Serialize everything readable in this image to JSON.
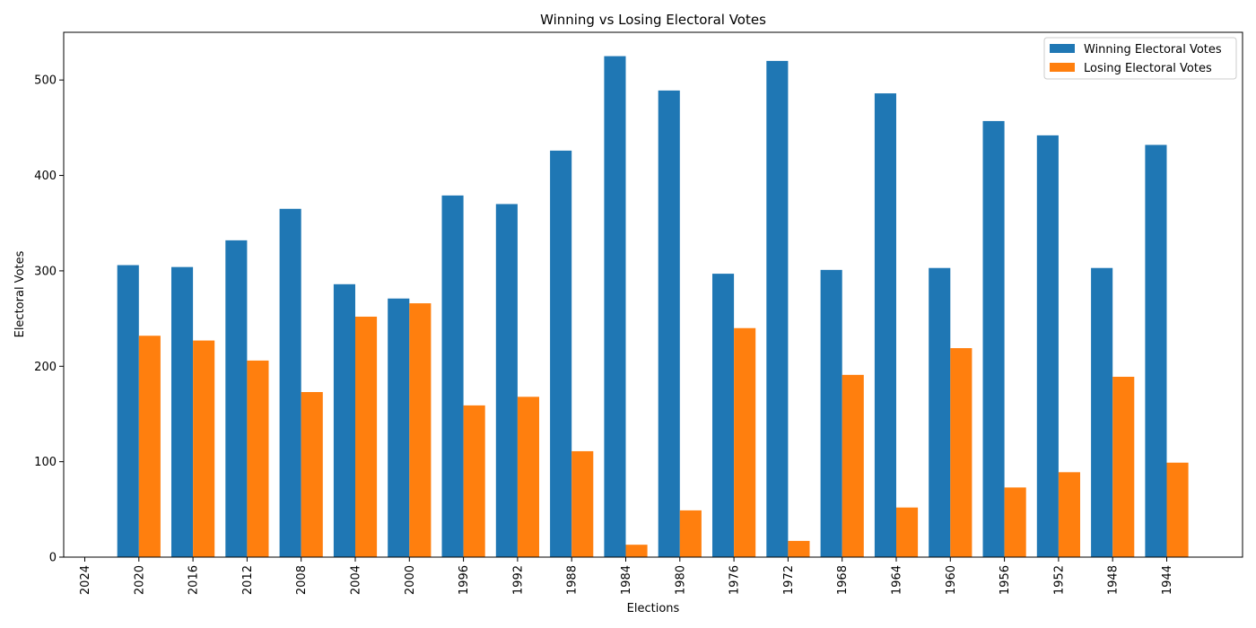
{
  "chart_data": {
    "type": "bar",
    "title": "Winning vs Losing Electoral Votes",
    "xlabel": "Elections",
    "ylabel": "Electoral Votes",
    "ylim": [
      0,
      550
    ],
    "yticks": [
      0,
      100,
      200,
      300,
      400,
      500
    ],
    "categories": [
      "2024",
      "2020",
      "2016",
      "2012",
      "2008",
      "2004",
      "2000",
      "1996",
      "1992",
      "1988",
      "1984",
      "1980",
      "1976",
      "1972",
      "1968",
      "1964",
      "1960",
      "1956",
      "1952",
      "1948",
      "1944"
    ],
    "series": [
      {
        "name": "Winning Electoral Votes",
        "color": "#1f77b4",
        "values": [
          0,
          306,
          304,
          332,
          365,
          286,
          271,
          379,
          370,
          426,
          525,
          489,
          297,
          520,
          301,
          486,
          303,
          457,
          442,
          303,
          432
        ]
      },
      {
        "name": "Losing Electoral Votes",
        "color": "#ff7f0e",
        "values": [
          0,
          232,
          227,
          206,
          173,
          252,
          266,
          159,
          168,
          111,
          13,
          49,
          240,
          17,
          191,
          52,
          219,
          73,
          89,
          189,
          99
        ]
      }
    ],
    "grid": false,
    "legend_position": "top-right"
  }
}
